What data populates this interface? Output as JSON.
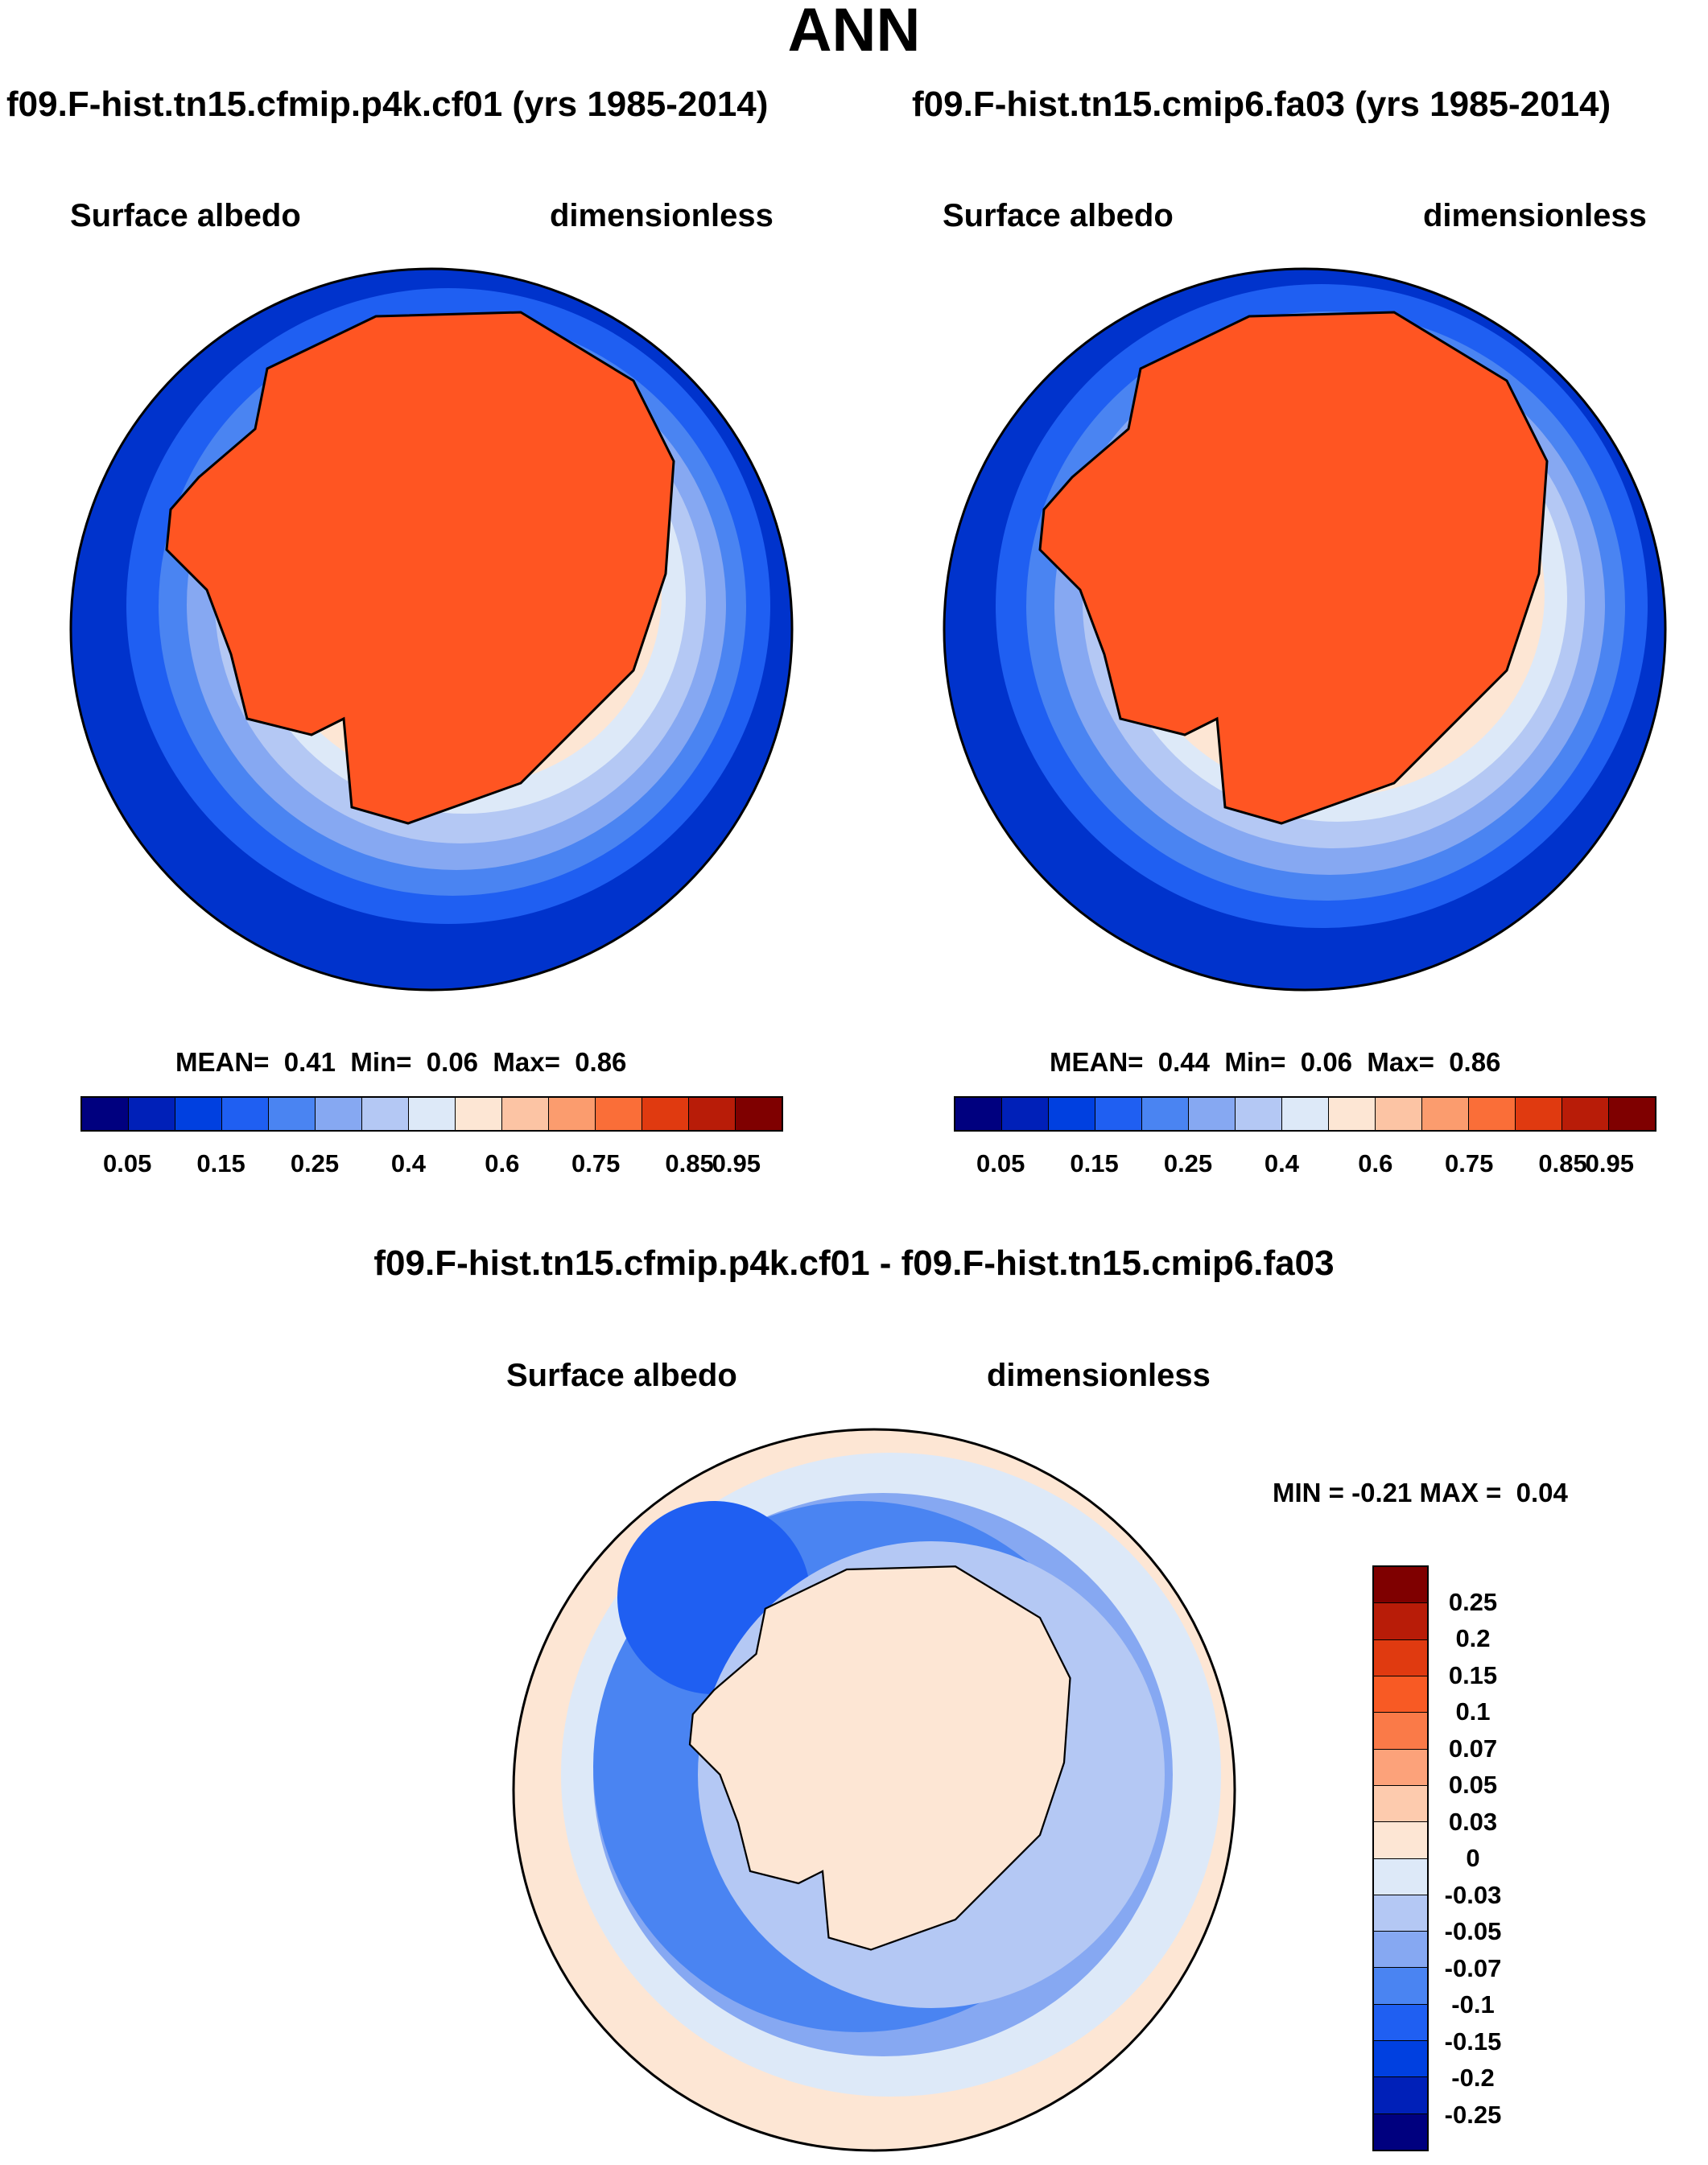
{
  "title": "ANN",
  "panels": [
    {
      "title": "f09.F-hist.tn15.cfmip.p4k.cf01 (yrs 1985-2014)",
      "variable": "Surface albedo",
      "units": "dimensionless",
      "stats": {
        "mean_label": "MEAN=",
        "mean": "0.41",
        "min_label": "Min=",
        "min": "0.06",
        "max_label": "Max=",
        "max": "0.86"
      }
    },
    {
      "title": "f09.F-hist.tn15.cmip6.fa03 (yrs 1985-2014)",
      "variable": "Surface albedo",
      "units": "dimensionless",
      "stats": {
        "mean_label": "MEAN=",
        "mean": "0.44",
        "min_label": "Min=",
        "min": "0.06",
        "max_label": "Max=",
        "max": "0.86"
      }
    }
  ],
  "diff_panel": {
    "title": "f09.F-hist.tn15.cfmip.p4k.cf01 - f09.F-hist.tn15.cmip6.fa03",
    "variable": "Surface albedo",
    "units": "dimensionless",
    "stats": {
      "min_label": "MIN =",
      "min": "-0.21",
      "max_label": "MAX =",
      "max": "0.04"
    }
  },
  "colorbar_main": {
    "colors": [
      "#00007f",
      "#0020b8",
      "#0040e0",
      "#1f5ff2",
      "#4a84f2",
      "#86a8f2",
      "#b4c8f4",
      "#dde9f8",
      "#fde6d4",
      "#fcc4a4",
      "#fb9c6e",
      "#fa6e38",
      "#e03a10",
      "#b81c08",
      "#7f0000"
    ],
    "labels": [
      "0.05",
      "0.15",
      "0.25",
      "0.4",
      "0.6",
      "0.75",
      "0.85",
      "0.95"
    ]
  },
  "colorbar_diff": {
    "colors": [
      "#7f0000",
      "#b81c08",
      "#e03a10",
      "#f85a24",
      "#fa7a48",
      "#fca27a",
      "#fdcbae",
      "#fde6d4",
      "#dde9f8",
      "#b4c8f4",
      "#86a8f2",
      "#4a84f2",
      "#1f5ff2",
      "#0040e0",
      "#0020b8",
      "#00007f"
    ],
    "labels": [
      "0.25",
      "0.2",
      "0.15",
      "0.1",
      "0.07",
      "0.05",
      "0.03",
      "0",
      "-0.03",
      "-0.05",
      "-0.07",
      "-0.1",
      "-0.15",
      "-0.2",
      "-0.25"
    ]
  },
  "map_colors": {
    "ocean_deep": "#0033cc",
    "ice_land": "#ff5522",
    "diff_bg": "#fde6d4"
  }
}
